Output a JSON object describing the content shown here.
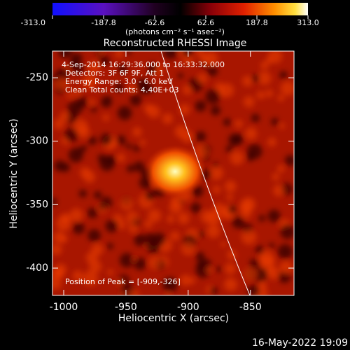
{
  "chart_data": {
    "type": "image",
    "title": "Reconstructed RHESSI Image",
    "colorbar_label": "(photons cm⁻² s⁻¹ asec⁻²)",
    "clim": [
      -313.0,
      313.0
    ],
    "cticks": [
      {
        "value": -313.0,
        "label": "-313.0"
      },
      {
        "value": -187.8,
        "label": "-187.8"
      },
      {
        "value": -62.6,
        "label": "-62.6"
      },
      {
        "value": 62.6,
        "label": "62.6"
      },
      {
        "value": 187.8,
        "label": "187.8"
      },
      {
        "value": 313.0,
        "label": "313.0"
      }
    ],
    "x_label": "Heliocentric X (arcsec)",
    "y_label": "Heliocentric Y (arcsec)",
    "xlim": [
      -1009,
      -815
    ],
    "ylim": [
      -421.5,
      -229
    ],
    "xticks": [
      -1000,
      -950,
      -900,
      -850
    ],
    "yticks": [
      -400,
      -350,
      -300,
      -250
    ],
    "annotations": [
      "4-Sep-2014 16:29:36.000 to 16:33:32.000",
      "Detectors: 3F 6F 9F, Att 1",
      "Energy Range: 3.0 - 6.0 keV",
      "Clean     Total counts: 4.40E+03"
    ],
    "peak_label": "Position of Peak = [-909,-326]",
    "footer": "16-May-2022 19:09"
  }
}
